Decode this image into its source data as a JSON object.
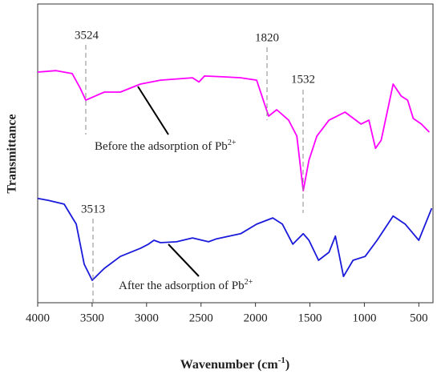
{
  "chart_data": {
    "type": "line",
    "xlabel": [
      "Wavenumber (cm",
      "-1",
      ")"
    ],
    "ylabel": "Transmittance",
    "xlim": [
      4000,
      370
    ],
    "ylim": [
      0,
      100
    ],
    "xticks": [
      4000,
      3500,
      3000,
      2500,
      2000,
      1500,
      1000,
      500
    ],
    "series": [
      {
        "name": "Before the adsorption of Pb",
        "name_sup": "2+",
        "color": "#ff00ff",
        "x": [
          4000,
          3831,
          3683,
          3609,
          3558,
          3388,
          3241,
          3057,
          2873,
          2578,
          2519,
          2468,
          2284,
          2136,
          1989,
          1916,
          1879,
          1805,
          1695,
          1620,
          1561,
          1509,
          1436,
          1325,
          1178,
          1031,
          958,
          898,
          846,
          736,
          662,
          603,
          551,
          477,
          404
        ],
        "values": [
          77.2,
          77.7,
          76.7,
          71.8,
          67.8,
          70.5,
          70.5,
          73.2,
          74.5,
          75.3,
          73.9,
          75.9,
          75.6,
          75.3,
          74.5,
          66.5,
          62.5,
          64.6,
          61.1,
          55.8,
          37.5,
          47.7,
          55.8,
          61.1,
          63.8,
          59.8,
          61.1,
          51.7,
          54.4,
          73.2,
          69.2,
          67.8,
          61.7,
          59.8,
          57.1
        ]
      },
      {
        "name": "After the adsorption of Pb",
        "name_sup": "2+",
        "color": "#1a1adb",
        "x": [
          4000,
          3904,
          3757,
          3646,
          3573,
          3499,
          3388,
          3241,
          3057,
          2983,
          2932,
          2873,
          2725,
          2578,
          2431,
          2357,
          2136,
          1989,
          1841,
          1753,
          1657,
          1561,
          1509,
          1421,
          1325,
          1266,
          1192,
          1104,
          993,
          883,
          736,
          625,
          500,
          382
        ],
        "values": [
          34.9,
          34.3,
          33.0,
          26.3,
          12.9,
          7.5,
          11.5,
          15.5,
          18.2,
          19.6,
          20.9,
          20.1,
          20.4,
          21.7,
          20.4,
          21.4,
          23.1,
          26.3,
          28.4,
          26.3,
          19.6,
          23.1,
          20.9,
          14.2,
          16.9,
          22.3,
          8.8,
          14.2,
          15.5,
          20.9,
          29.0,
          26.3,
          20.9,
          31.6
        ]
      }
    ],
    "annotations": [
      "3524",
      "1820",
      "1532",
      "3513"
    ]
  }
}
